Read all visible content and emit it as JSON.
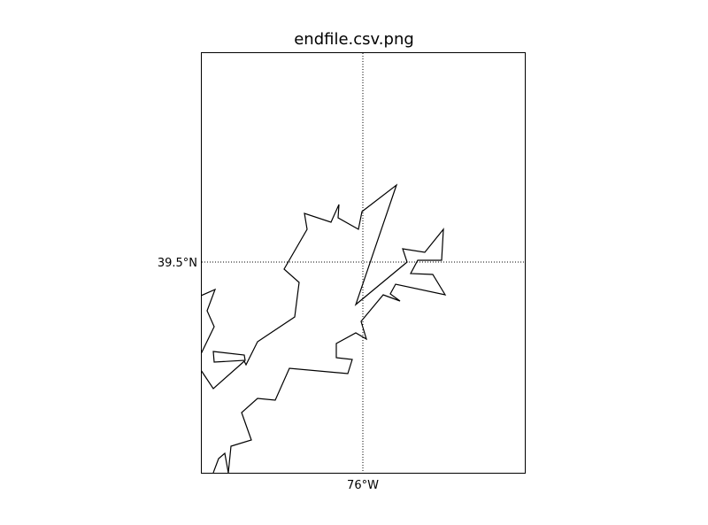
{
  "title": "endfile.csv.png",
  "graticule": {
    "longitude_label": "76°W",
    "latitude_label": "39.5°N",
    "longitude_value": -76.0,
    "latitude_value": 39.5,
    "style": "dotted"
  },
  "colors": {
    "coastline": "#000000",
    "frame": "#000000",
    "background": "#ffffff"
  }
}
